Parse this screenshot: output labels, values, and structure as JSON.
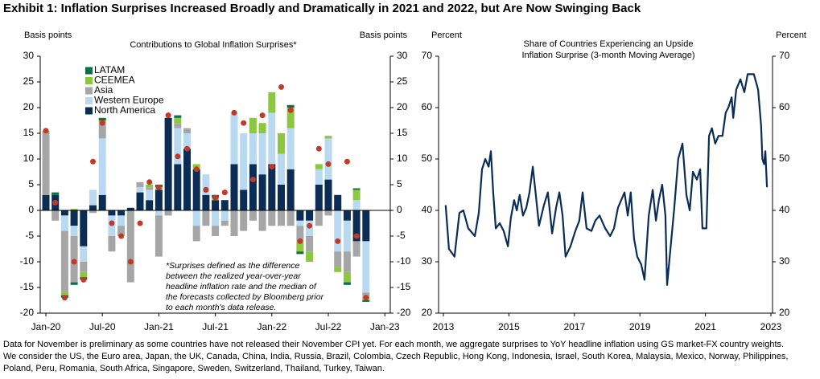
{
  "title": "Exhibit 1: Inflation Surprises Increased Broadly and Dramatically in 2021 and 2022, but Are Now Swinging Back",
  "footnote": [
    "Data for November is preliminary as some countries have not released their November CPI yet. For each month, we aggregate surprises to YoY headline inflation using GS market-FX country weights.",
    "We consider the US, the Euro area, Japan, the UK, Canada, China, India, Russia, Brazil, Colombia, Czech Republic, Hong Kong, Indonesia, Israel, South Korea, Malaysia, Mexico, Norway, Philippines,",
    "Poland, Peru, Romania, South Africa, Singapore, Sweden, Switzerland, Thailand, Turkey, Taiwan."
  ],
  "chart_data": [
    {
      "type": "stacked_bar",
      "title": "Contributions to Global Inflation Surprises*",
      "y_label": "Basis points",
      "y2_label": "Basis points",
      "categories": [
        "Jan-20",
        null,
        null,
        null,
        null,
        null,
        "Jul-20",
        null,
        null,
        null,
        null,
        null,
        "Jan-21",
        null,
        null,
        null,
        null,
        null,
        "Jul-21",
        null,
        null,
        null,
        null,
        null,
        "Jan-22",
        null,
        null,
        null,
        null,
        null,
        "Jul-22",
        null,
        null,
        null,
        null,
        null,
        "Jan-23"
      ],
      "series": [
        {
          "name": "North America",
          "color": "#0b2d55",
          "values": [
            3,
            3,
            -1,
            -3,
            -7,
            1,
            3,
            -1,
            -1,
            0.5,
            3.5,
            2,
            4,
            18,
            9,
            12,
            8,
            3,
            2,
            2,
            9,
            4,
            9,
            7,
            9,
            5,
            8,
            -2,
            -2,
            5,
            6,
            3,
            -2,
            -6,
            -6,
            null,
            null
          ]
        },
        {
          "name": "Western Europe",
          "color": "#b9d9f1",
          "values": [
            0,
            0,
            -3,
            -2,
            -3,
            3,
            11,
            -4,
            -2,
            0,
            1,
            2,
            -1,
            0,
            7,
            3,
            -3,
            4,
            -3,
            -2,
            10,
            11,
            6,
            8,
            10,
            6,
            8,
            -1,
            -3,
            3,
            8,
            -8,
            -6,
            2,
            -10,
            null,
            null
          ]
        },
        {
          "name": "Asia",
          "color": "#a6a6a6",
          "values": [
            12,
            -2,
            -12,
            -9,
            -2,
            -0.5,
            3,
            -3,
            -2,
            -14,
            1,
            0.5,
            -8,
            -1,
            1,
            1,
            -3,
            -3,
            -2,
            -1,
            -5,
            -4,
            -2,
            -4,
            -3,
            -3,
            -3,
            -3,
            -3,
            -3,
            -1,
            -3,
            -4,
            -3,
            -1,
            null,
            null
          ]
        },
        {
          "name": "CEEMEA",
          "color": "#8dc63f",
          "values": [
            0.5,
            0,
            -0.5,
            0.3,
            -1,
            0,
            0.5,
            0,
            0,
            0,
            0,
            0.5,
            0.5,
            0,
            1,
            0,
            1,
            0,
            0.5,
            0,
            0,
            0,
            3,
            2,
            4,
            4,
            4,
            -2,
            -2,
            1,
            0.5,
            -1,
            -2,
            2,
            -0.5,
            null,
            null
          ]
        },
        {
          "name": "LATAM",
          "color": "#0e6e4a",
          "values": [
            0,
            0.5,
            -0.5,
            -0.5,
            -0.5,
            0,
            0.5,
            0,
            0,
            0,
            0,
            0,
            0.5,
            0,
            0.5,
            0,
            0,
            0,
            0.5,
            0,
            0,
            0,
            0,
            0,
            0,
            0,
            0.5,
            -0.5,
            0,
            0,
            0,
            0,
            -0.5,
            0.3,
            -0.3,
            null,
            null
          ]
        }
      ],
      "dots": {
        "color": "#c0392b",
        "values": [
          15.5,
          1.5,
          -17,
          -10,
          -13.5,
          9.5,
          17,
          -2.5,
          -5,
          -10,
          -2.5,
          5.5,
          4.5,
          18.5,
          10.5,
          12,
          8,
          4,
          2.5,
          3.5,
          19,
          17,
          6,
          18.5,
          8.5,
          24,
          19.5,
          -6,
          -3,
          12,
          9,
          -6,
          9.5,
          -5,
          -17,
          null,
          null
        ]
      },
      "ylim": [
        -20,
        30
      ],
      "yticks": [
        -20,
        -15,
        -10,
        -5,
        0,
        5,
        10,
        15,
        20,
        25,
        30
      ],
      "y2lim": [
        -20,
        30
      ],
      "y2ticks": [
        -20,
        -15,
        -10,
        -5,
        0,
        5,
        10,
        15,
        20,
        25,
        30
      ],
      "note_lines": [
        "*Surprises defined as the difference",
        "between the realized year-over-year",
        "headline inflation rate and the median of",
        "the forecasts collected by Bloomberg prior",
        "to each month's data release."
      ]
    },
    {
      "type": "line",
      "title_lines": [
        "Share of Countries Experiencing an Upside",
        "Inflation Surprise (3-month Moving Average)"
      ],
      "y_label": "Percent",
      "y2_label": "Percent",
      "color": "#0b2d55",
      "x": [
        2013.07,
        2013.17,
        2013.34,
        2013.49,
        2013.61,
        2013.76,
        2013.96,
        2014.08,
        2014.18,
        2014.28,
        2014.38,
        2014.45,
        2014.52,
        2014.6,
        2014.72,
        2014.84,
        2014.97,
        2015.06,
        2015.16,
        2015.24,
        2015.33,
        2015.43,
        2015.53,
        2015.63,
        2015.73,
        2015.83,
        2015.92,
        2016.07,
        2016.19,
        2016.32,
        2016.44,
        2016.54,
        2016.64,
        2016.73,
        2016.88,
        2017.03,
        2017.15,
        2017.25,
        2017.37,
        2017.52,
        2017.64,
        2017.77,
        2017.94,
        2018.09,
        2018.21,
        2018.33,
        2018.43,
        2018.53,
        2018.63,
        2018.72,
        2018.82,
        2018.92,
        2019.04,
        2019.14,
        2019.27,
        2019.39,
        2019.49,
        2019.58,
        2019.68,
        2019.78,
        2019.83,
        2020.05,
        2020.17,
        2020.3,
        2020.42,
        2020.52,
        2020.62,
        2020.74,
        2020.84,
        2020.91,
        2021.03,
        2021.11,
        2021.2,
        2021.3,
        2021.4,
        2021.52,
        2021.62,
        2021.7,
        2021.8,
        2021.85,
        2021.94,
        2022.07,
        2022.19,
        2022.29,
        2022.48,
        2022.61,
        2022.7,
        2022.74,
        2022.79,
        2022.83,
        2022.88
      ],
      "values": [
        41,
        32.5,
        31,
        39.5,
        40,
        36.5,
        35,
        39.5,
        48,
        50,
        48.5,
        51.5,
        43.5,
        36.5,
        37.5,
        36,
        33,
        38.5,
        42,
        40,
        43,
        39,
        40.5,
        43.5,
        48.5,
        42.5,
        37,
        41,
        43.5,
        35.5,
        40.5,
        43.5,
        39,
        31,
        33,
        36,
        38,
        43.5,
        36.5,
        36,
        38,
        39,
        36.5,
        35,
        36.5,
        40.5,
        42,
        43.5,
        39,
        43.5,
        34.5,
        31,
        29.5,
        26.5,
        39,
        44,
        38,
        42,
        45,
        39,
        25.5,
        40.5,
        50,
        53,
        43,
        40,
        47.5,
        46,
        48,
        36.5,
        36.5,
        54.5,
        56,
        53,
        54.5,
        54.5,
        59,
        60,
        62,
        58,
        63.5,
        65.5,
        63,
        66.5,
        66.5,
        63.5,
        56.5,
        50,
        49,
        51.5,
        44.5
      ],
      "xlim": [
        2013,
        2023
      ],
      "xticks": [
        2013,
        2015,
        2017,
        2019,
        2021,
        2023
      ],
      "ylim": [
        20,
        70
      ],
      "yticks": [
        20,
        30,
        40,
        50,
        60,
        70
      ],
      "y2lim": [
        20,
        70
      ],
      "y2ticks": [
        20,
        30,
        40,
        50,
        60,
        70
      ]
    }
  ]
}
